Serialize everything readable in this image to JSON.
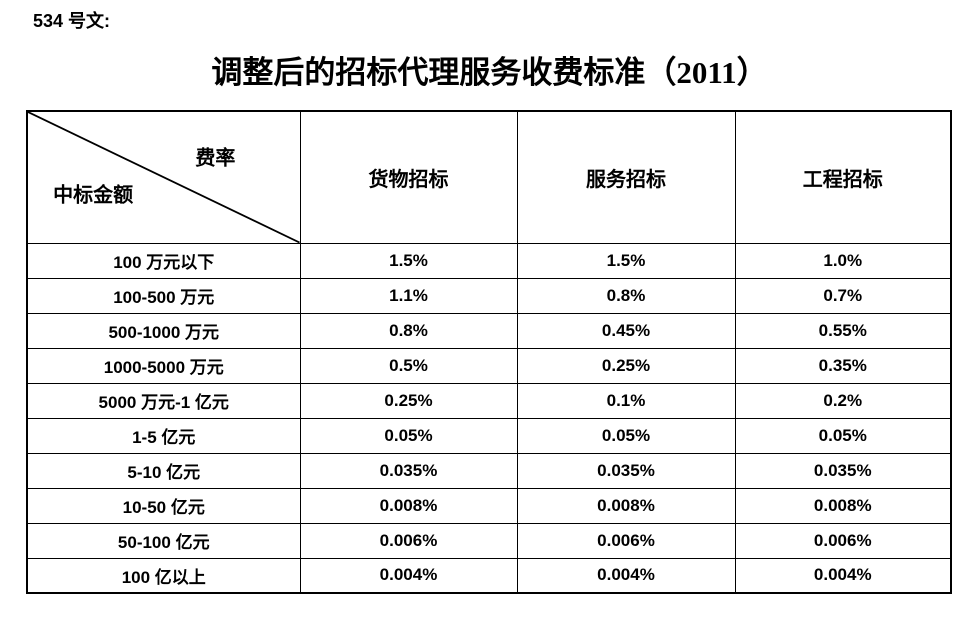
{
  "doc_label": "534 号文:",
  "title": "调整后的招标代理服务收费标准（2011）",
  "table": {
    "corner": {
      "top_right": "费率",
      "bottom_left": "中标金额"
    },
    "columns": [
      "货物招标",
      "服务招标",
      "工程招标"
    ],
    "rows": [
      {
        "label": "100 万元以下",
        "values": [
          "1.5%",
          "1.5%",
          "1.0%"
        ]
      },
      {
        "label": "100-500 万元",
        "values": [
          "1.1%",
          "0.8%",
          "0.7%"
        ]
      },
      {
        "label": "500-1000 万元",
        "values": [
          "0.8%",
          "0.45%",
          "0.55%"
        ]
      },
      {
        "label": "1000-5000 万元",
        "values": [
          "0.5%",
          "0.25%",
          "0.35%"
        ]
      },
      {
        "label": "5000 万元-1 亿元",
        "values": [
          "0.25%",
          "0.1%",
          "0.2%"
        ]
      },
      {
        "label": "1-5 亿元",
        "values": [
          "0.05%",
          "0.05%",
          "0.05%"
        ]
      },
      {
        "label": "5-10 亿元",
        "values": [
          "0.035%",
          "0.035%",
          "0.035%"
        ]
      },
      {
        "label": "10-50 亿元",
        "values": [
          "0.008%",
          "0.008%",
          "0.008%"
        ]
      },
      {
        "label": "50-100 亿元",
        "values": [
          "0.006%",
          "0.006%",
          "0.006%"
        ]
      },
      {
        "label": "100 亿以上",
        "values": [
          "0.004%",
          "0.004%",
          "0.004%"
        ]
      }
    ]
  },
  "colors": {
    "text": "#000000",
    "border": "#000000",
    "page_background": "#ffffff"
  }
}
